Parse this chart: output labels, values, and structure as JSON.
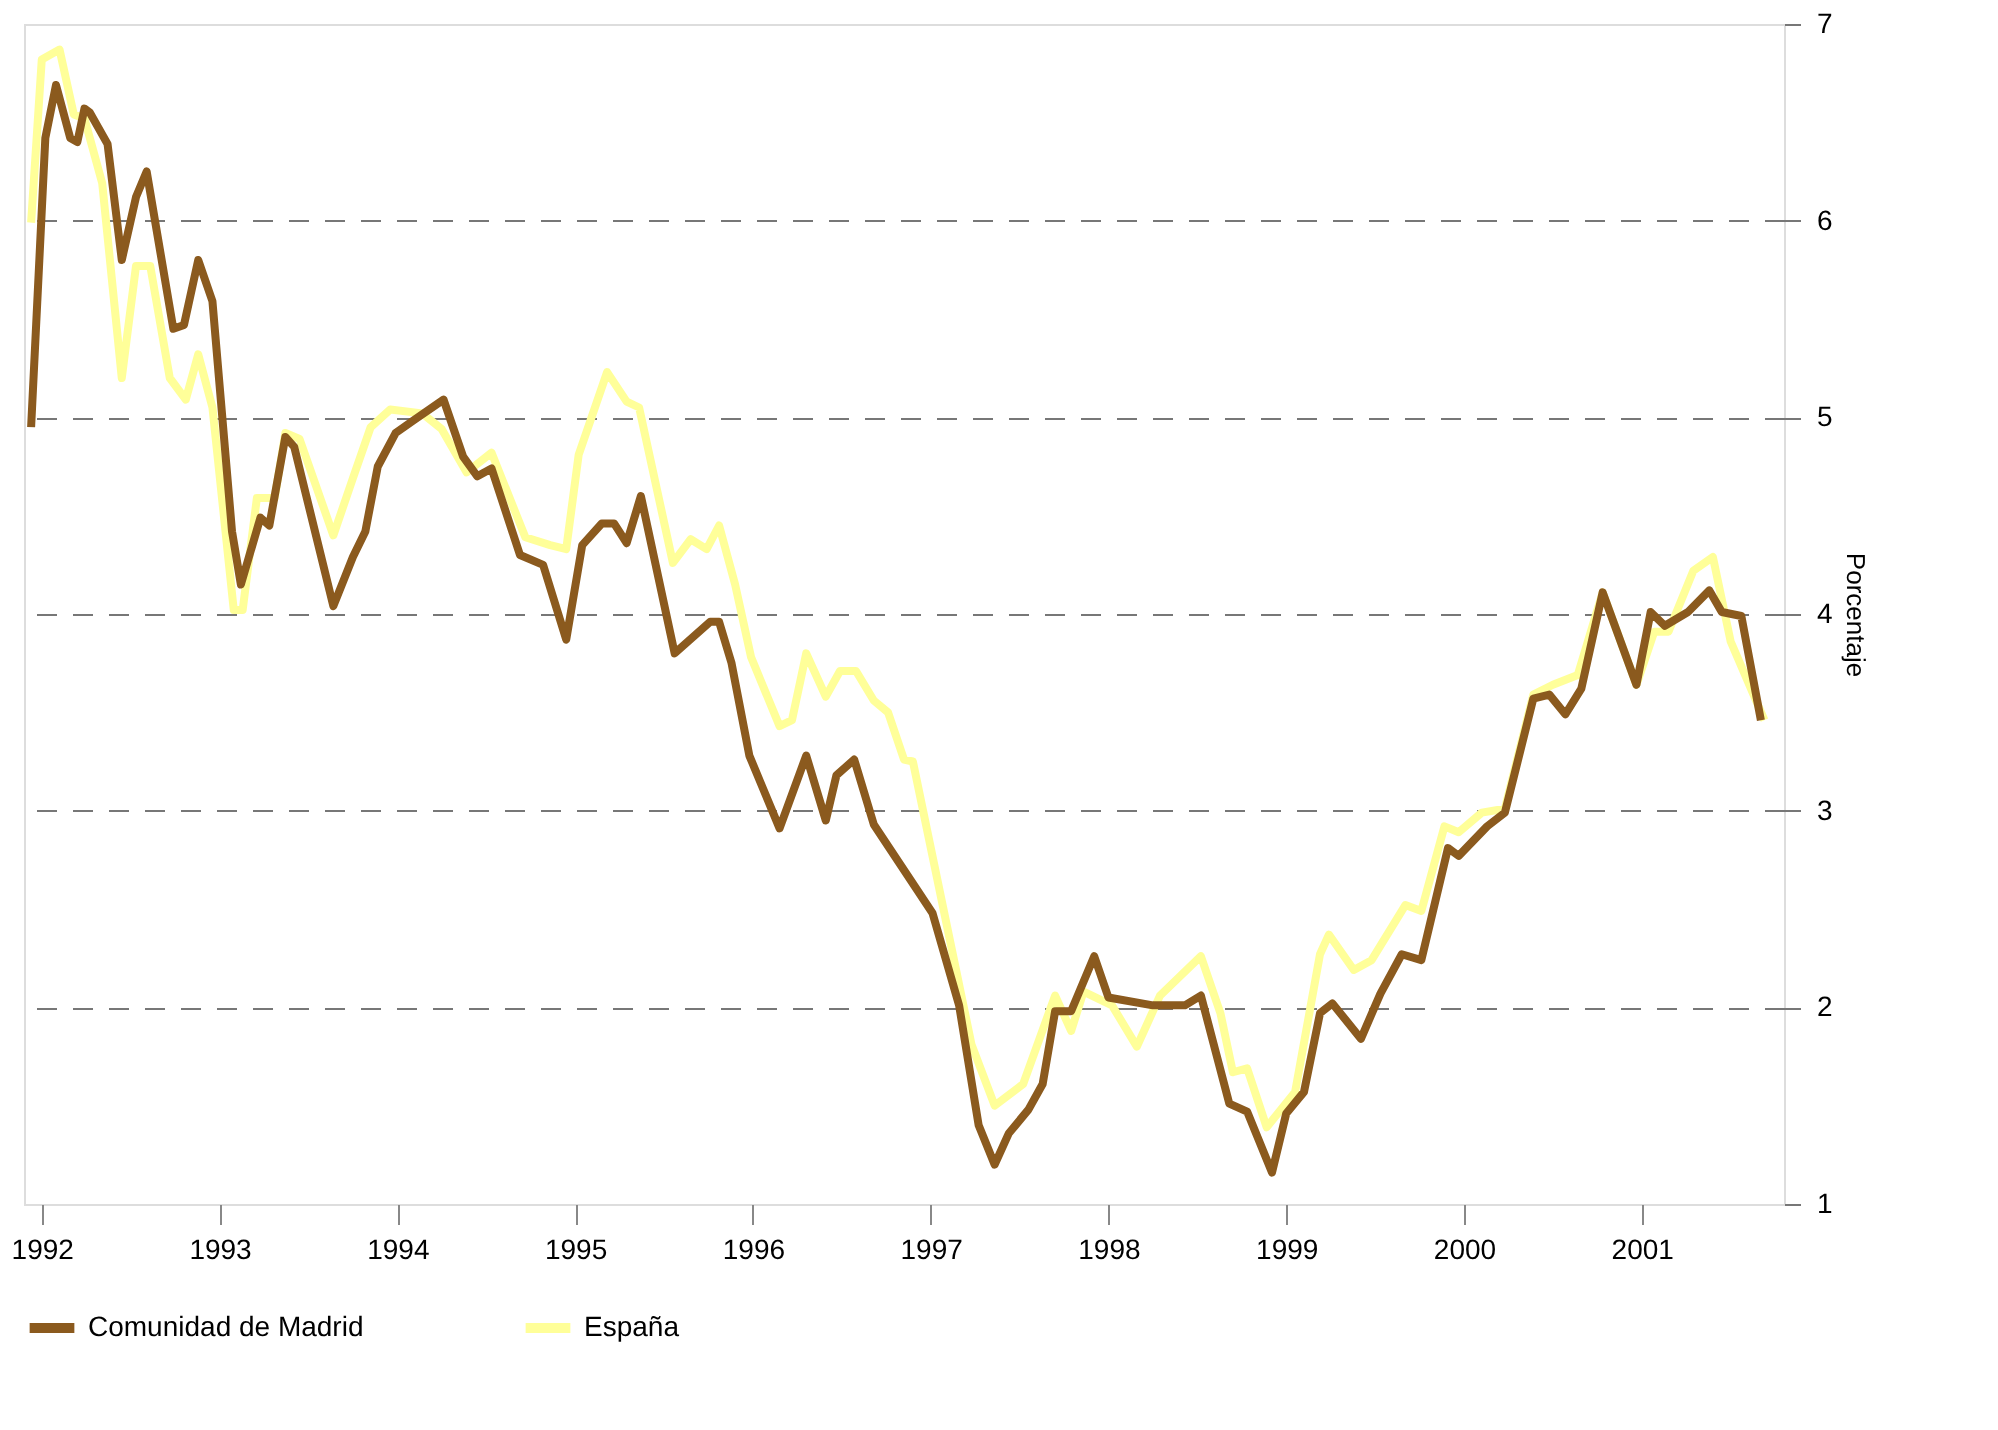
{
  "chart_data": {
    "type": "line",
    "ylabel": "Porcentaje",
    "xlim": [
      1991.9,
      2001.8
    ],
    "xticks": [
      1992,
      1993,
      1994,
      1995,
      1996,
      1997,
      1998,
      1999,
      2000,
      2001
    ],
    "ylim": [
      1,
      7
    ],
    "yticks": [
      1,
      2,
      3,
      4,
      5,
      6,
      7
    ],
    "grid": "y",
    "legend": "bottom",
    "line_style": "solid",
    "marker": "none",
    "series": [
      {
        "name": "Comunidad de Madrid",
        "color": "#8b5a1e",
        "x": [
          1991.94,
          1992.02,
          1992.08,
          1992.16,
          1992.2,
          1992.24,
          1992.27,
          1992.37,
          1992.45,
          1992.53,
          1992.59,
          1992.74,
          1992.8,
          1992.88,
          1992.96,
          1993.07,
          1993.12,
          1993.23,
          1993.28,
          1993.37,
          1993.42,
          1993.64,
          1993.75,
          1993.82,
          1993.89,
          1993.99,
          1994.1,
          1994.26,
          1994.37,
          1994.45,
          1994.53,
          1994.69,
          1994.82,
          1994.95,
          1995.04,
          1995.15,
          1995.22,
          1995.29,
          1995.37,
          1995.56,
          1995.76,
          1995.81,
          1995.88,
          1995.98,
          1996.15,
          1996.3,
          1996.41,
          1996.47,
          1996.57,
          1996.68,
          1997.01,
          1997.16,
          1997.27,
          1997.36,
          1997.44,
          1997.55,
          1997.63,
          1997.7,
          1997.79,
          1997.92,
          1998.0,
          1998.25,
          1998.43,
          1998.52,
          1998.68,
          1998.78,
          1998.92,
          1999.0,
          1999.1,
          1999.19,
          1999.26,
          1999.42,
          1999.53,
          1999.65,
          1999.76,
          1999.91,
          1999.97,
          2000.13,
          2000.23,
          2000.39,
          2000.48,
          2000.57,
          2000.66,
          2000.78,
          2000.97,
          2001.05,
          2001.13,
          2001.26,
          2001.38,
          2001.45,
          2001.56,
          2001.67
        ],
        "values": [
          4.95,
          6.42,
          6.69,
          6.42,
          6.4,
          6.57,
          6.55,
          6.39,
          5.8,
          6.12,
          6.25,
          5.45,
          5.47,
          5.8,
          5.59,
          4.42,
          4.15,
          4.49,
          4.45,
          4.9,
          4.85,
          4.04,
          4.29,
          4.42,
          4.75,
          4.92,
          4.99,
          5.09,
          4.8,
          4.7,
          4.74,
          4.3,
          4.25,
          3.87,
          4.35,
          4.46,
          4.46,
          4.36,
          4.6,
          3.8,
          3.96,
          3.96,
          3.75,
          3.28,
          2.91,
          3.28,
          2.95,
          3.18,
          3.26,
          2.93,
          2.48,
          2.01,
          1.4,
          1.2,
          1.36,
          1.48,
          1.61,
          1.98,
          1.98,
          2.26,
          2.05,
          2.01,
          2.01,
          2.06,
          1.51,
          1.47,
          1.16,
          1.46,
          1.57,
          1.97,
          2.02,
          1.84,
          2.07,
          2.27,
          2.24,
          2.81,
          2.77,
          2.92,
          2.99,
          3.57,
          3.59,
          3.49,
          3.62,
          4.11,
          3.64,
          4.01,
          3.94,
          4.01,
          4.12,
          4.01,
          3.99,
          3.46
        ]
      },
      {
        "name": "España",
        "color": "#ffff99",
        "x": [
          1991.94,
          1992.0,
          1992.1,
          1992.18,
          1992.24,
          1992.34,
          1992.45,
          1992.53,
          1992.61,
          1992.72,
          1992.81,
          1992.88,
          1992.96,
          1993.08,
          1993.13,
          1993.21,
          1993.31,
          1993.37,
          1993.45,
          1993.64,
          1993.75,
          1993.85,
          1993.96,
          1994.14,
          1994.25,
          1994.39,
          1994.53,
          1994.72,
          1994.86,
          1994.95,
          1995.02,
          1995.18,
          1995.29,
          1995.36,
          1995.55,
          1995.65,
          1995.74,
          1995.81,
          1995.9,
          1995.99,
          1996.15,
          1996.22,
          1996.3,
          1996.41,
          1996.49,
          1996.58,
          1996.68,
          1996.76,
          1996.85,
          1996.9,
          1997.23,
          1997.36,
          1997.52,
          1997.7,
          1997.79,
          1997.86,
          1998.02,
          1998.16,
          1998.29,
          1998.52,
          1998.63,
          1998.7,
          1998.78,
          1998.89,
          1999.05,
          1999.19,
          1999.24,
          1999.38,
          1999.48,
          1999.67,
          1999.76,
          1999.89,
          1999.97,
          2000.1,
          2000.23,
          2000.39,
          2000.5,
          2000.64,
          2000.78,
          2000.97,
          2001.07,
          2001.15,
          2001.29,
          2001.4,
          2001.5,
          2001.69
        ],
        "values": [
          5.99,
          6.82,
          6.87,
          6.54,
          6.52,
          6.19,
          5.2,
          5.77,
          5.77,
          5.2,
          5.09,
          5.32,
          5.05,
          4.02,
          4.02,
          4.59,
          4.59,
          4.92,
          4.89,
          4.4,
          4.69,
          4.95,
          5.04,
          5.02,
          4.94,
          4.72,
          4.82,
          4.39,
          4.35,
          4.33,
          4.81,
          5.23,
          5.08,
          5.05,
          4.26,
          4.38,
          4.33,
          4.45,
          4.15,
          3.78,
          3.43,
          3.46,
          3.8,
          3.58,
          3.71,
          3.71,
          3.56,
          3.5,
          3.26,
          3.25,
          1.81,
          1.5,
          1.61,
          2.06,
          1.88,
          2.08,
          2.01,
          1.8,
          2.06,
          2.26,
          1.97,
          1.67,
          1.69,
          1.39,
          1.57,
          2.27,
          2.37,
          2.19,
          2.24,
          2.52,
          2.49,
          2.92,
          2.89,
          2.99,
          3.01,
          3.59,
          3.64,
          3.69,
          4.11,
          3.64,
          3.91,
          3.91,
          4.22,
          4.29,
          3.86,
          3.46
        ]
      }
    ]
  }
}
